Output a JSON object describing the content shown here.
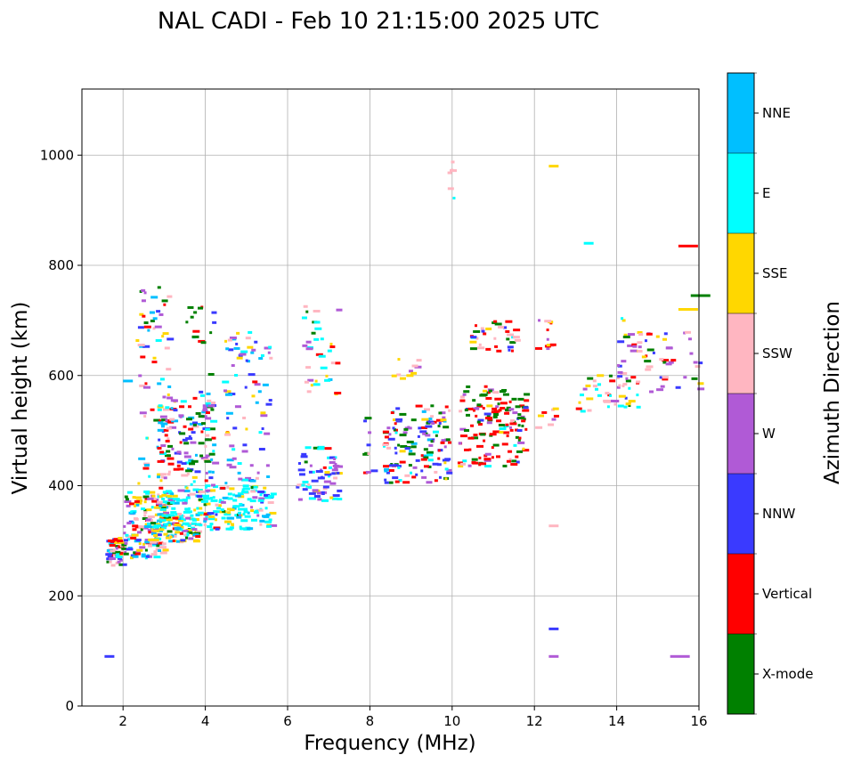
{
  "chart_data": {
    "type": "scatter",
    "title": "NAL CADI - Feb 10 21:15:00 2025 UTC",
    "xlabel": "Frequency (MHz)",
    "ylabel": "Virtual height (km)",
    "xlim": [
      1,
      16
    ],
    "ylim": [
      0,
      1120
    ],
    "xticks": [
      2,
      4,
      6,
      8,
      10,
      12,
      14,
      16
    ],
    "yticks": [
      0,
      200,
      400,
      600,
      800,
      1000
    ],
    "grid": true,
    "colorbar": {
      "label": "Azimuth Direction",
      "categories": [
        "X-mode",
        "Vertical",
        "NNW",
        "W",
        "SSW",
        "SSE",
        "E",
        "NNE"
      ],
      "colors": [
        "#008000",
        "#ff0000",
        "#3a3aff",
        "#b05ad6",
        "#ffb6c1",
        "#ffd700",
        "#00ffff",
        "#00bfff"
      ]
    },
    "traces": [
      {
        "x0": 1.55,
        "x1": 2.0,
        "y0": 255,
        "y1": 305,
        "count": 60,
        "mix": [
          0.15,
          0.2,
          0.15,
          0.1,
          0.15,
          0.1,
          0.1,
          0.05
        ]
      },
      {
        "x0": 2.0,
        "x1": 3.0,
        "y0": 268,
        "y1": 390,
        "count": 140,
        "mix": [
          0.1,
          0.15,
          0.1,
          0.15,
          0.15,
          0.15,
          0.1,
          0.1
        ]
      },
      {
        "x0": 2.5,
        "x1": 3.8,
        "y0": 295,
        "y1": 350,
        "count": 110,
        "mix": [
          0.05,
          0.05,
          0.05,
          0.05,
          0.15,
          0.25,
          0.25,
          0.15
        ]
      },
      {
        "x0": 2.7,
        "x1": 5.6,
        "y0": 320,
        "y1": 400,
        "count": 230,
        "mix": [
          0.02,
          0.02,
          0.04,
          0.06,
          0.05,
          0.16,
          0.55,
          0.1
        ]
      },
      {
        "x0": 2.3,
        "x1": 3.1,
        "y0": 400,
        "y1": 760,
        "count": 70,
        "mix": [
          0.1,
          0.25,
          0.1,
          0.1,
          0.15,
          0.15,
          0.05,
          0.1
        ]
      },
      {
        "x0": 2.8,
        "x1": 4.2,
        "y0": 400,
        "y1": 560,
        "count": 130,
        "mix": [
          0.2,
          0.15,
          0.15,
          0.15,
          0.05,
          0.05,
          0.15,
          0.1
        ]
      },
      {
        "x0": 3.5,
        "x1": 4.2,
        "y0": 450,
        "y1": 740,
        "count": 25,
        "mix": [
          0.5,
          0.1,
          0.1,
          0.1,
          0.05,
          0.05,
          0.05,
          0.05
        ]
      },
      {
        "x0": 4.4,
        "x1": 5.6,
        "y0": 400,
        "y1": 680,
        "count": 80,
        "mix": [
          0.05,
          0.05,
          0.1,
          0.25,
          0.1,
          0.1,
          0.1,
          0.25
        ]
      },
      {
        "x0": 6.2,
        "x1": 7.2,
        "y0": 370,
        "y1": 470,
        "count": 70,
        "mix": [
          0.05,
          0.05,
          0.35,
          0.15,
          0.1,
          0.1,
          0.2,
          0.0
        ]
      },
      {
        "x0": 6.3,
        "x1": 7.2,
        "y0": 560,
        "y1": 730,
        "count": 35,
        "mix": [
          0.05,
          0.1,
          0.05,
          0.1,
          0.2,
          0.15,
          0.3,
          0.05
        ]
      },
      {
        "x0": 7.8,
        "x1": 8.1,
        "y0": 395,
        "y1": 545,
        "count": 10,
        "mix": [
          0.1,
          0.1,
          0.3,
          0.3,
          0.1,
          0.05,
          0.05,
          0.0
        ]
      },
      {
        "x0": 8.3,
        "x1": 9.9,
        "y0": 405,
        "y1": 545,
        "count": 140,
        "mix": [
          0.2,
          0.15,
          0.3,
          0.15,
          0.05,
          0.02,
          0.08,
          0.05
        ]
      },
      {
        "x0": 8.5,
        "x1": 9.2,
        "y0": 590,
        "y1": 630,
        "count": 10,
        "mix": [
          0.0,
          0.0,
          0.0,
          0.1,
          0.3,
          0.6,
          0.0,
          0.0
        ]
      },
      {
        "x0": 10.1,
        "x1": 11.8,
        "y0": 435,
        "y1": 580,
        "count": 150,
        "mix": [
          0.3,
          0.45,
          0.05,
          0.1,
          0.05,
          0.02,
          0.03,
          0.0
        ]
      },
      {
        "x0": 10.4,
        "x1": 11.6,
        "y0": 640,
        "y1": 700,
        "count": 35,
        "mix": [
          0.1,
          0.3,
          0.1,
          0.1,
          0.2,
          0.1,
          0.1,
          0.0
        ]
      },
      {
        "x0": 9.85,
        "x1": 10.05,
        "y0": 920,
        "y1": 995,
        "count": 6,
        "mix": [
          0,
          0,
          0,
          0,
          0.7,
          0,
          0.3,
          0
        ]
      },
      {
        "x0": 12.0,
        "x1": 12.5,
        "y0": 640,
        "y1": 705,
        "count": 12,
        "mix": [
          0.1,
          0.4,
          0.1,
          0.1,
          0.2,
          0.1,
          0,
          0
        ]
      },
      {
        "x0": 12.0,
        "x1": 12.5,
        "y0": 490,
        "y1": 550,
        "count": 8,
        "mix": [
          0,
          0.4,
          0,
          0.2,
          0.2,
          0.2,
          0,
          0
        ]
      },
      {
        "x0": 13.0,
        "x1": 14.5,
        "y0": 535,
        "y1": 600,
        "count": 40,
        "mix": [
          0.05,
          0.15,
          0.05,
          0.05,
          0.3,
          0.2,
          0.2,
          0
        ]
      },
      {
        "x0": 14.0,
        "x1": 16.0,
        "y0": 570,
        "y1": 680,
        "count": 60,
        "mix": [
          0.05,
          0.1,
          0.15,
          0.3,
          0.2,
          0.2,
          0,
          0
        ]
      },
      {
        "x0": 14.0,
        "x1": 14.6,
        "y0": 640,
        "y1": 705,
        "count": 8,
        "mix": [
          0.2,
          0,
          0,
          0,
          0.3,
          0.3,
          0.2,
          0
        ]
      }
    ],
    "isolated": [
      {
        "x": 1.55,
        "y": 90,
        "cat": 2
      },
      {
        "x": 12.35,
        "y": 140,
        "cat": 2
      },
      {
        "x": 12.35,
        "y": 90,
        "cat": 3
      },
      {
        "x": 12.35,
        "y": 327,
        "cat": 4
      },
      {
        "x": 12.35,
        "y": 980,
        "cat": 5
      },
      {
        "x": 13.2,
        "y": 840,
        "cat": 6
      },
      {
        "x": 15.3,
        "y": 90,
        "cat": 3
      },
      {
        "x": 15.5,
        "y": 835,
        "cat": 1
      },
      {
        "x": 15.5,
        "y": 720,
        "cat": 5
      },
      {
        "x": 15.8,
        "y": 745,
        "cat": 0
      },
      {
        "x": 2.0,
        "y": 590,
        "cat": 7
      }
    ]
  }
}
